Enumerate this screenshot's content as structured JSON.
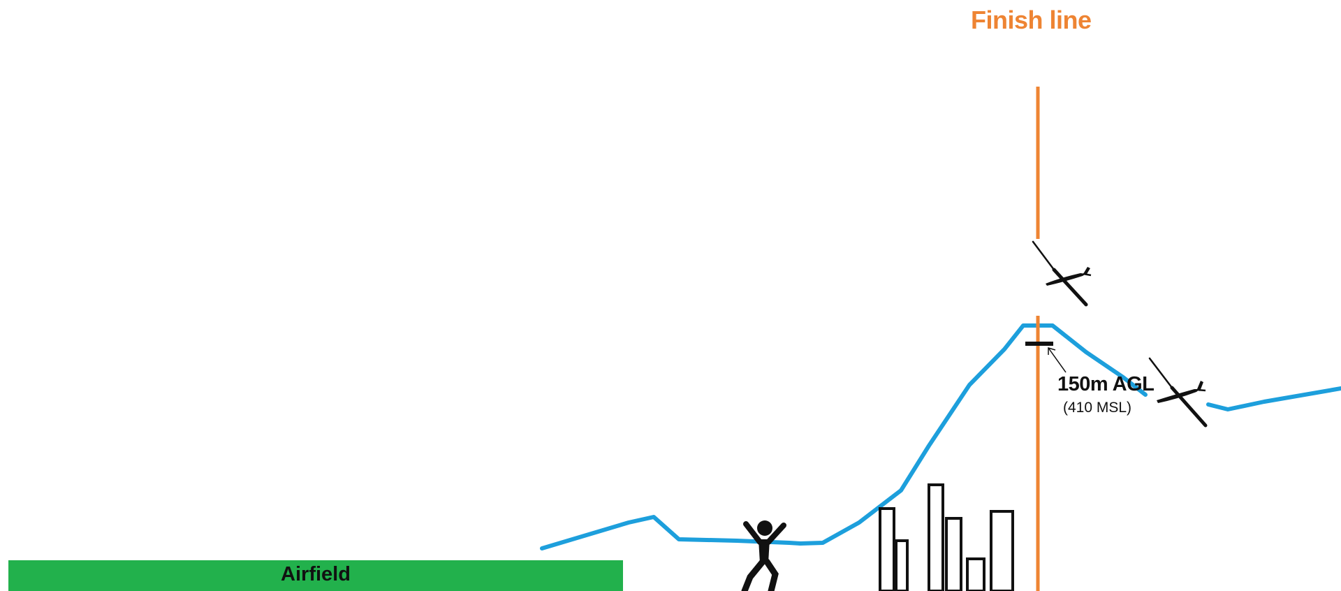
{
  "finish_line": {
    "label": "Finish line",
    "color": "#ee8433"
  },
  "airfield": {
    "label": "Airfield",
    "color": "#22b14c"
  },
  "ridge_marker": {
    "agl_label": "150m AGL",
    "msl_label": "(410 MSL)"
  },
  "terrain_color": "#1d9fdc",
  "icons": [
    "glider-icon",
    "person-jumping-icon",
    "buildings-icon",
    "arrow-icon"
  ]
}
